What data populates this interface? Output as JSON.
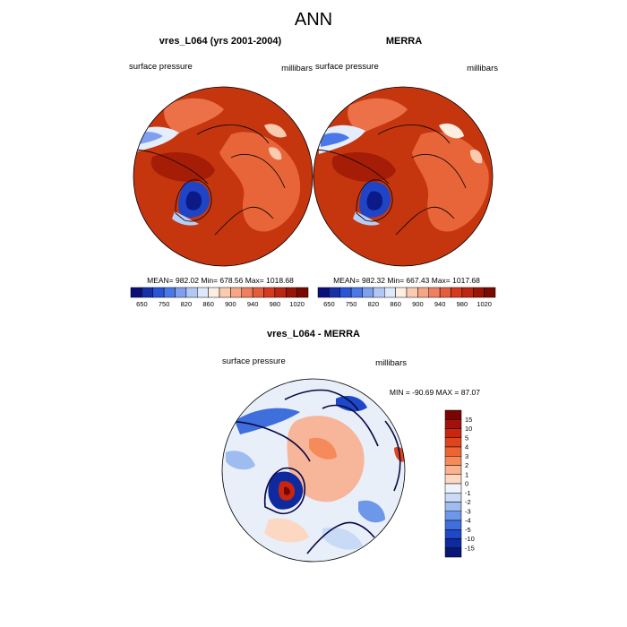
{
  "figure": {
    "main_title": "ANN"
  },
  "chart_data": [
    {
      "type": "heatmap",
      "title": "vres_L064 (yrs 2001-2004)",
      "left_label": "surface pressure",
      "right_label": "millibars",
      "projection": "north polar stereographic",
      "stats_text": "MEAN= 982.02  Min= 678.56  Max= 1018.68",
      "stats": {
        "mean": 982.02,
        "min": 678.56,
        "max": 1018.68
      },
      "colorbar": {
        "orientation": "horizontal",
        "levels": [
          "650",
          "750",
          "820",
          "860",
          "900",
          "940",
          "980",
          "1020"
        ],
        "colors": [
          "#0a0f7a",
          "#1730a8",
          "#2a55d8",
          "#4a78e8",
          "#7fa0ee",
          "#b2c8f4",
          "#dde8fa",
          "#fdeee2",
          "#fbcbb0",
          "#f6a585",
          "#ef7f5e",
          "#e65d3d",
          "#d63a1f",
          "#bc2612",
          "#9a1506",
          "#780a02"
        ]
      }
    },
    {
      "type": "heatmap",
      "title": "MERRA",
      "left_label": "surface pressure",
      "right_label": "millibars",
      "projection": "north polar stereographic",
      "stats_text": "MEAN= 982.32  Min= 667.43  Max= 1017.68",
      "stats": {
        "mean": 982.32,
        "min": 667.43,
        "max": 1017.68
      },
      "colorbar": {
        "orientation": "horizontal",
        "levels": [
          "650",
          "750",
          "820",
          "860",
          "900",
          "940",
          "980",
          "1020"
        ],
        "colors": [
          "#0a0f7a",
          "#1730a8",
          "#2a55d8",
          "#4a78e8",
          "#7fa0ee",
          "#b2c8f4",
          "#dde8fa",
          "#fdeee2",
          "#fbcbb0",
          "#f6a585",
          "#ef7f5e",
          "#e65d3d",
          "#d63a1f",
          "#bc2612",
          "#9a1506",
          "#780a02"
        ]
      }
    },
    {
      "type": "heatmap",
      "title": "vres_L064 - MERRA",
      "left_label": "surface pressure",
      "right_label": "millibars",
      "projection": "north polar stereographic",
      "stats_text": "MIN = -90.69 MAX =  87.07",
      "stats": {
        "min": -90.69,
        "max": 87.07
      },
      "colorbar": {
        "orientation": "vertical",
        "levels": [
          "15",
          "10",
          "5",
          "4",
          "3",
          "2",
          "1",
          "0",
          "-1",
          "-2",
          "-3",
          "-4",
          "-5",
          "-10",
          "-15"
        ],
        "colors": [
          "#7a0403",
          "#a3120a",
          "#c8260f",
          "#e0441c",
          "#ee6533",
          "#f58a5a",
          "#f9b28e",
          "#fcd7c2",
          "#eef3fb",
          "#c9daf6",
          "#9ebcf0",
          "#6d97e8",
          "#3f6fdd",
          "#1e48c8",
          "#0f2a9e",
          "#071775"
        ]
      }
    }
  ]
}
